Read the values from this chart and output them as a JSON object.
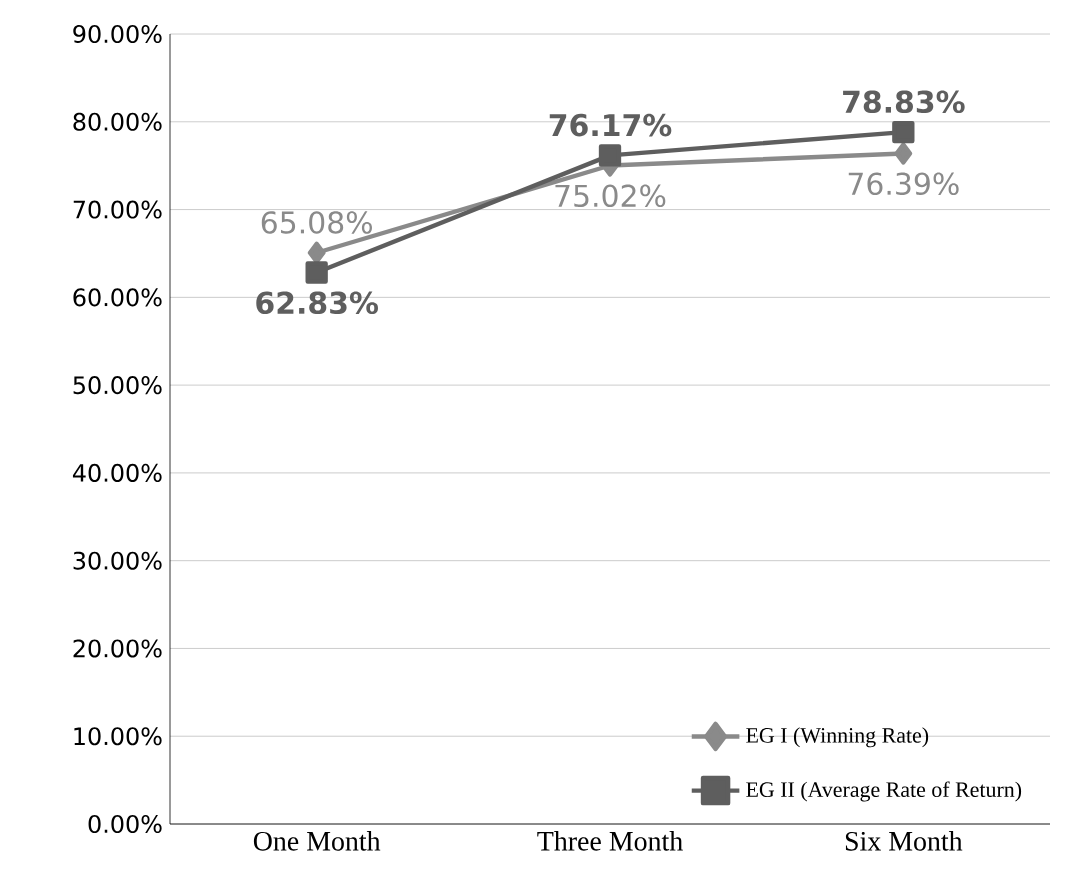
{
  "chart_data": {
    "type": "line",
    "categories": [
      "One Month",
      "Three Month",
      "Six Month"
    ],
    "series": [
      {
        "name": "EG I (Winning Rate)",
        "color": "#8a8a8a",
        "values": [
          65.08,
          75.02,
          76.39
        ],
        "marker": "diamond",
        "value_labels": [
          "65.08%",
          "75.02%",
          "76.39%"
        ]
      },
      {
        "name": "EG II (Average Rate of Return)",
        "color": "#5e5e5e",
        "values": [
          62.83,
          76.17,
          78.83
        ],
        "marker": "square",
        "value_labels": [
          "62.83%",
          "76.17%",
          "78.83%"
        ]
      }
    ],
    "ylim": [
      0,
      90
    ],
    "yticks": [
      {
        "value": 0,
        "label": "0.00%"
      },
      {
        "value": 10,
        "label": "10.00%"
      },
      {
        "value": 20,
        "label": "20.00%"
      },
      {
        "value": 30,
        "label": "30.00%"
      },
      {
        "value": 40,
        "label": "40.00%"
      },
      {
        "value": 50,
        "label": "50.00%"
      },
      {
        "value": 60,
        "label": "60.00%"
      },
      {
        "value": 70,
        "label": "70.00%"
      },
      {
        "value": 80,
        "label": "80.00%"
      },
      {
        "value": 90,
        "label": "90.00%"
      }
    ],
    "grid": "y",
    "legend": "bottom right",
    "line_style": "solid"
  }
}
